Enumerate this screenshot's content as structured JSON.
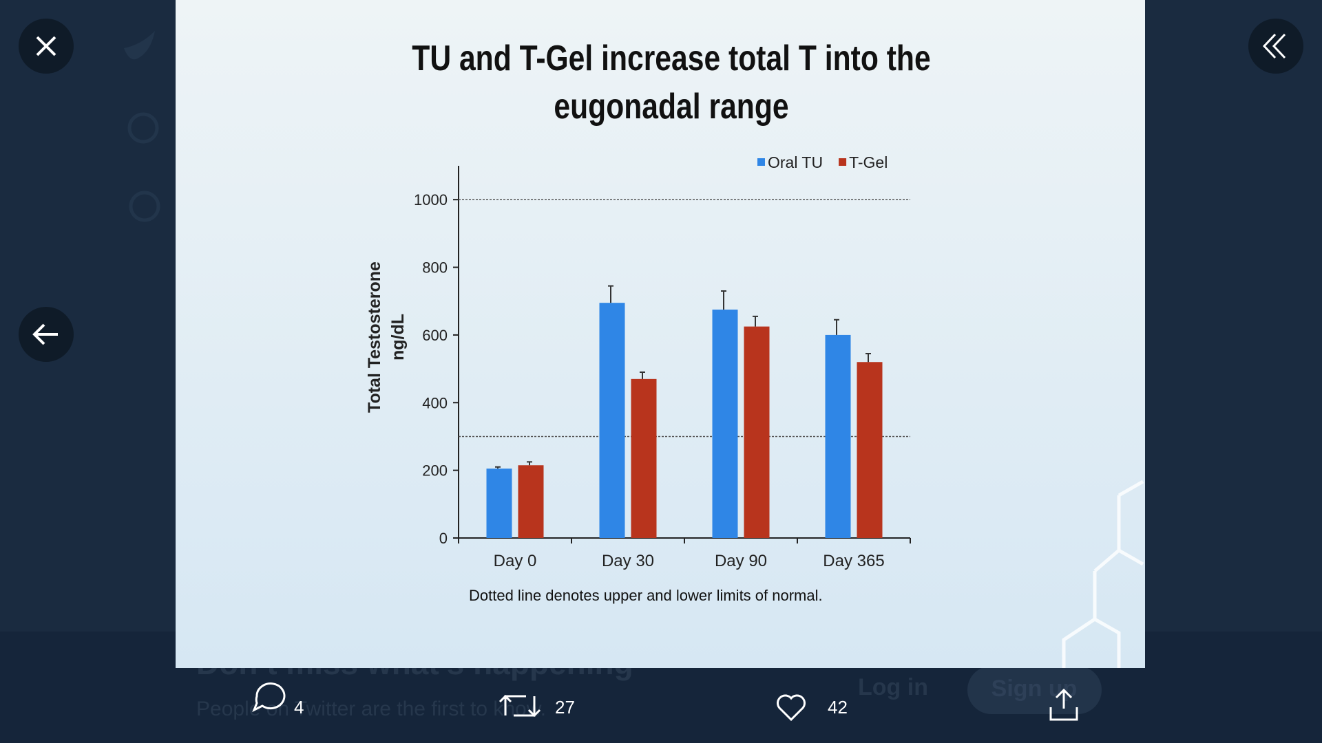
{
  "chart_data": {
    "type": "bar",
    "title": "TU and T-Gel increase total T into the eugonadal range",
    "ylabel": [
      "Total Testosterone",
      "ng/dL"
    ],
    "categories": [
      "Day 0",
      "Day 30",
      "Day 90",
      "Day 365"
    ],
    "series": [
      {
        "name": "Oral TU",
        "color": "#2f86e6",
        "values": [
          205,
          695,
          675,
          600
        ],
        "errors": [
          5,
          50,
          55,
          45
        ]
      },
      {
        "name": "T-Gel",
        "color": "#b8341d",
        "values": [
          215,
          470,
          625,
          520
        ],
        "errors": [
          10,
          20,
          30,
          25
        ]
      }
    ],
    "ylim": [
      0,
      1100
    ],
    "yticks": [
      0,
      200,
      400,
      600,
      800,
      1000
    ],
    "reference_lines": [
      1000,
      300
    ],
    "legend": "top-right",
    "note": "Dotted line denotes upper and lower limits of normal."
  },
  "banner": {
    "headline": "Don’t miss what’s happening",
    "text": "People on Twitter are the first to know.",
    "login": "Log in",
    "signup": "Sign up"
  },
  "actions": {
    "replies": 4,
    "retweets": 27,
    "likes": 42
  }
}
